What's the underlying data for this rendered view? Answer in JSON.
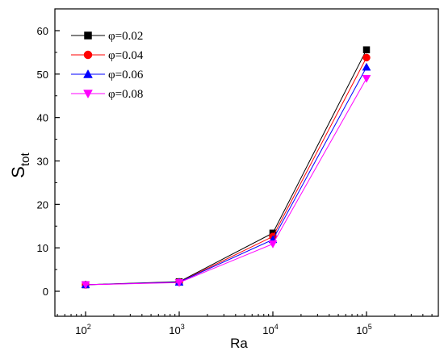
{
  "chart_data": {
    "type": "line",
    "xlabel": "Ra",
    "ylabel_main": "S",
    "ylabel_sub": "tot",
    "x": [
      100,
      1000,
      10000,
      100000
    ],
    "x_ticks": [
      {
        "base": "10",
        "exp": "2"
      },
      {
        "base": "10",
        "exp": "3"
      },
      {
        "base": "10",
        "exp": "4"
      },
      {
        "base": "10",
        "exp": "5"
      }
    ],
    "x_scale": "log",
    "xlim": [
      10,
      1000000
    ],
    "ylim": [
      -5,
      65
    ],
    "y_ticks": [
      "0",
      "10",
      "20",
      "30",
      "40",
      "50",
      "60"
    ],
    "grid": false,
    "legend_position": "top-left",
    "series": [
      {
        "name": "φ=0.02",
        "values": [
          1.5,
          2.2,
          13.4,
          55.6
        ],
        "color": "#000000",
        "marker": "square"
      },
      {
        "name": "φ=0.04",
        "values": [
          1.5,
          2.1,
          12.6,
          53.8
        ],
        "color": "#ff0000",
        "marker": "circle"
      },
      {
        "name": "φ=0.06",
        "values": [
          1.5,
          2.1,
          11.9,
          51.6
        ],
        "color": "#0000ff",
        "marker": "triangle-up"
      },
      {
        "name": "φ=0.08",
        "values": [
          1.5,
          2.0,
          10.9,
          49.0
        ],
        "color": "#ff00ff",
        "marker": "triangle-down"
      }
    ]
  }
}
